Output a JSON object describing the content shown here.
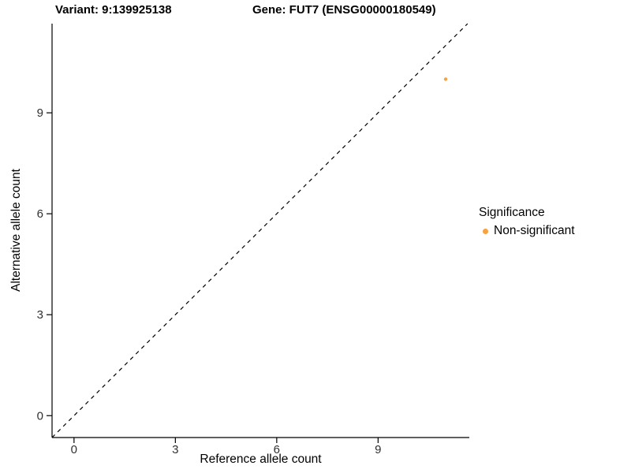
{
  "chart_data": {
    "type": "scatter",
    "title_left": "Variant: 9:139925138",
    "title_right": "Gene: FUT7 (ENSG00000180549)",
    "xlabel": "Reference allele count",
    "ylabel": "Alternative allele count",
    "xlim": [
      -0.65,
      11.7
    ],
    "ylim": [
      -0.65,
      11.65
    ],
    "xticks": [
      0,
      3,
      6,
      9
    ],
    "yticks": [
      0,
      3,
      6,
      9
    ],
    "grid": false,
    "identity_line": {
      "slope": 1,
      "intercept": 0,
      "style": "dashed",
      "color": "#000000"
    },
    "series": [
      {
        "name": "Non-significant",
        "color": "#F9A03F",
        "points": [
          {
            "x": 11,
            "y": 10
          }
        ]
      }
    ],
    "legend": {
      "title": "Significance",
      "position": "right",
      "items": [
        {
          "label": "Non-significant",
          "color": "#F9A03F"
        }
      ]
    },
    "axis_color": "#000000",
    "background": "#FFFFFF"
  }
}
